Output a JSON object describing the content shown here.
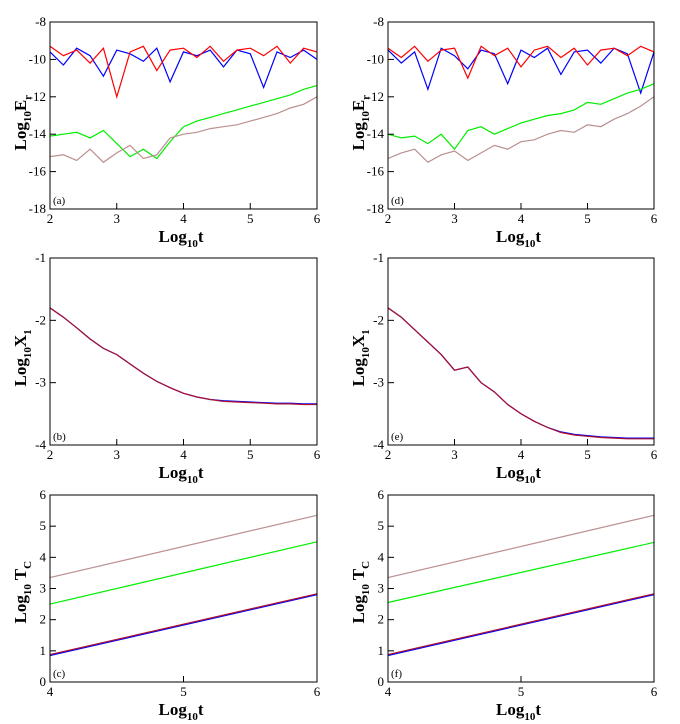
{
  "chart_data": [
    {
      "type": "line",
      "panel_label": "(a)",
      "xlabel_parts": [
        "Log",
        "10",
        "t"
      ],
      "ylabel_parts": [
        "Log",
        "10",
        "E",
        "r"
      ],
      "xlim": [
        2,
        6
      ],
      "ylim": [
        -18,
        -8
      ],
      "xticks": [
        2,
        3,
        4,
        5,
        6
      ],
      "yticks": [
        -18,
        -16,
        -14,
        -12,
        -10,
        -8
      ],
      "x": [
        2,
        2.2,
        2.4,
        2.6,
        2.8,
        3,
        3.2,
        3.4,
        3.6,
        3.8,
        4,
        4.2,
        4.4,
        4.6,
        4.8,
        5,
        5.2,
        5.4,
        5.6,
        5.8,
        6
      ],
      "series": [
        {
          "color": "#0000ff",
          "values": [
            -9.6,
            -10.3,
            -9.4,
            -9.8,
            -10.9,
            -9.5,
            -9.7,
            -10.1,
            -9.4,
            -11.2,
            -9.6,
            -9.8,
            -9.5,
            -10.4,
            -9.5,
            -9.7,
            -11.5,
            -9.6,
            -9.9,
            -9.5,
            -10.0
          ]
        },
        {
          "color": "#ff0000",
          "values": [
            -9.3,
            -9.8,
            -9.5,
            -10.2,
            -9.4,
            -12.0,
            -9.6,
            -9.3,
            -10.6,
            -9.5,
            -9.4,
            -9.9,
            -9.3,
            -10.1,
            -9.5,
            -9.4,
            -9.8,
            -9.3,
            -10.2,
            -9.4,
            -9.6
          ]
        },
        {
          "color": "#00ee00",
          "values": [
            -14.1,
            -14.0,
            -13.9,
            -14.2,
            -13.8,
            -14.5,
            -15.2,
            -14.8,
            -15.3,
            -14.4,
            -13.6,
            -13.3,
            -13.1,
            -12.9,
            -12.7,
            -12.5,
            -12.3,
            -12.1,
            -11.9,
            -11.6,
            -11.4
          ]
        },
        {
          "color": "#bc8f8f",
          "values": [
            -15.2,
            -15.1,
            -15.4,
            -14.8,
            -15.5,
            -15.0,
            -14.6,
            -15.3,
            -15.1,
            -14.2,
            -14.0,
            -13.9,
            -13.7,
            -13.6,
            -13.5,
            -13.3,
            -13.1,
            -12.9,
            -12.6,
            -12.4,
            -12.0
          ]
        }
      ]
    },
    {
      "type": "line",
      "panel_label": "(d)",
      "xlabel_parts": [
        "Log",
        "10",
        "t"
      ],
      "ylabel_parts": [
        "Log",
        "10",
        "E",
        "r"
      ],
      "xlim": [
        2,
        6
      ],
      "ylim": [
        -18,
        -8
      ],
      "xticks": [
        2,
        3,
        4,
        5,
        6
      ],
      "yticks": [
        -18,
        -16,
        -14,
        -12,
        -10,
        -8
      ],
      "x": [
        2,
        2.2,
        2.4,
        2.6,
        2.8,
        3,
        3.2,
        3.4,
        3.6,
        3.8,
        4,
        4.2,
        4.4,
        4.6,
        4.8,
        5,
        5.2,
        5.4,
        5.6,
        5.8,
        6
      ],
      "series": [
        {
          "color": "#0000ff",
          "values": [
            -9.5,
            -10.2,
            -9.6,
            -11.6,
            -9.4,
            -9.8,
            -10.5,
            -9.5,
            -9.7,
            -11.3,
            -9.5,
            -9.9,
            -9.4,
            -10.8,
            -9.6,
            -9.5,
            -10.2,
            -9.4,
            -9.7,
            -11.8,
            -9.6
          ]
        },
        {
          "color": "#ff0000",
          "values": [
            -9.4,
            -9.9,
            -9.3,
            -10.1,
            -9.5,
            -9.4,
            -11.0,
            -9.3,
            -9.8,
            -9.4,
            -10.4,
            -9.5,
            -9.3,
            -9.9,
            -9.4,
            -10.3,
            -9.5,
            -9.4,
            -9.8,
            -9.3,
            -9.6
          ]
        },
        {
          "color": "#00ee00",
          "values": [
            -14.0,
            -14.2,
            -14.1,
            -14.5,
            -14.0,
            -14.8,
            -13.8,
            -13.6,
            -14.0,
            -13.7,
            -13.4,
            -13.2,
            -13.0,
            -12.9,
            -12.7,
            -12.3,
            -12.4,
            -12.1,
            -11.8,
            -11.6,
            -11.3
          ]
        },
        {
          "color": "#bc8f8f",
          "values": [
            -15.3,
            -15.0,
            -14.8,
            -15.5,
            -15.1,
            -14.9,
            -15.4,
            -15.0,
            -14.6,
            -14.8,
            -14.4,
            -14.3,
            -14.0,
            -13.8,
            -13.9,
            -13.5,
            -13.6,
            -13.2,
            -12.9,
            -12.5,
            -12.0
          ]
        }
      ]
    },
    {
      "type": "line",
      "panel_label": "(b)",
      "xlabel_parts": [
        "Log",
        "10",
        "t"
      ],
      "ylabel_parts": [
        "Log",
        "10",
        "X",
        "1"
      ],
      "xlim": [
        2,
        6
      ],
      "ylim": [
        -4,
        -1
      ],
      "xticks": [
        2,
        3,
        4,
        5,
        6
      ],
      "yticks": [
        -4,
        -3,
        -2,
        -1
      ],
      "x": [
        2,
        2.2,
        2.4,
        2.6,
        2.8,
        3,
        3.2,
        3.4,
        3.6,
        3.8,
        4,
        4.2,
        4.4,
        4.6,
        4.8,
        5,
        5.2,
        5.4,
        5.6,
        5.8,
        6
      ],
      "series": [
        {
          "color": "#0000ff",
          "values": [
            -1.8,
            -1.95,
            -2.12,
            -2.3,
            -2.45,
            -2.55,
            -2.7,
            -2.85,
            -2.98,
            -3.08,
            -3.17,
            -3.23,
            -3.27,
            -3.29,
            -3.3,
            -3.31,
            -3.32,
            -3.33,
            -3.33,
            -3.34,
            -3.34
          ]
        },
        {
          "color": "#aa1030",
          "values": [
            -1.8,
            -1.95,
            -2.12,
            -2.3,
            -2.45,
            -2.55,
            -2.7,
            -2.85,
            -2.98,
            -3.08,
            -3.17,
            -3.23,
            -3.27,
            -3.3,
            -3.31,
            -3.32,
            -3.33,
            -3.34,
            -3.34,
            -3.35,
            -3.35
          ]
        }
      ]
    },
    {
      "type": "line",
      "panel_label": "(e)",
      "xlabel_parts": [
        "Log",
        "10",
        "t"
      ],
      "ylabel_parts": [
        "Log",
        "10",
        "X",
        "1"
      ],
      "xlim": [
        2,
        6
      ],
      "ylim": [
        -4,
        -1
      ],
      "xticks": [
        2,
        3,
        4,
        5,
        6
      ],
      "yticks": [
        -4,
        -3,
        -2,
        -1
      ],
      "x": [
        2,
        2.2,
        2.4,
        2.6,
        2.8,
        3,
        3.2,
        3.4,
        3.6,
        3.8,
        4,
        4.2,
        4.4,
        4.6,
        4.8,
        5,
        5.2,
        5.4,
        5.6,
        5.8,
        6
      ],
      "series": [
        {
          "color": "#0000ff",
          "values": [
            -1.8,
            -1.95,
            -2.15,
            -2.35,
            -2.55,
            -2.8,
            -2.75,
            -3.0,
            -3.15,
            -3.35,
            -3.5,
            -3.62,
            -3.72,
            -3.79,
            -3.83,
            -3.85,
            -3.87,
            -3.88,
            -3.89,
            -3.89,
            -3.89
          ]
        },
        {
          "color": "#aa1030",
          "values": [
            -1.8,
            -1.95,
            -2.15,
            -2.35,
            -2.55,
            -2.8,
            -2.75,
            -3.0,
            -3.15,
            -3.35,
            -3.5,
            -3.62,
            -3.72,
            -3.8,
            -3.84,
            -3.86,
            -3.88,
            -3.89,
            -3.9,
            -3.9,
            -3.9
          ]
        }
      ]
    },
    {
      "type": "line",
      "panel_label": "(c)",
      "xlabel_parts": [
        "Log",
        "10",
        "t"
      ],
      "ylabel_parts": [
        "Log",
        "10",
        " T",
        "C"
      ],
      "xlim": [
        4,
        6
      ],
      "ylim": [
        0,
        6
      ],
      "xticks": [
        4,
        5,
        6
      ],
      "yticks": [
        0,
        1,
        2,
        3,
        4,
        5,
        6
      ],
      "x": [
        4,
        6
      ],
      "series": [
        {
          "color": "#bc8f8f",
          "values": [
            3.35,
            5.35
          ]
        },
        {
          "color": "#00ee00",
          "values": [
            2.5,
            4.5
          ]
        },
        {
          "color": "#0000ff",
          "values": [
            0.85,
            2.8
          ]
        },
        {
          "color": "#aa1030",
          "values": [
            0.88,
            2.83
          ]
        }
      ]
    },
    {
      "type": "line",
      "panel_label": "(f)",
      "xlabel_parts": [
        "Log",
        "10",
        "t"
      ],
      "ylabel_parts": [
        "Log",
        "10",
        " T",
        "C"
      ],
      "xlim": [
        4,
        6
      ],
      "ylim": [
        0,
        6
      ],
      "xticks": [
        4,
        5,
        6
      ],
      "yticks": [
        0,
        1,
        2,
        3,
        4,
        5,
        6
      ],
      "x": [
        4,
        6
      ],
      "series": [
        {
          "color": "#bc8f8f",
          "values": [
            3.35,
            5.35
          ]
        },
        {
          "color": "#00ee00",
          "values": [
            2.55,
            4.48
          ]
        },
        {
          "color": "#0000ff",
          "values": [
            0.85,
            2.8
          ]
        },
        {
          "color": "#aa1030",
          "values": [
            0.88,
            2.83
          ]
        }
      ]
    }
  ]
}
